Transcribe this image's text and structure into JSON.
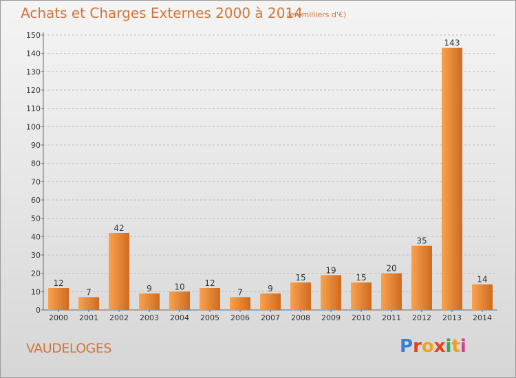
{
  "header": {
    "title": "Achats et Charges Externes 2000 à 2014",
    "subtitle": "(en milliers d'€)"
  },
  "footer": {
    "town": "VAUDELOGES",
    "logo_text": "Proxiti"
  },
  "colors": {
    "bar_light": "#f9a24e",
    "bar_dark": "#cf6a1f",
    "title": "#d0753a",
    "logo": [
      "#3a7fd1",
      "#e2401f",
      "#f0a020",
      "#e2401f",
      "#39a84a",
      "#f0a020",
      "#d23f8f"
    ]
  },
  "chart_data": {
    "type": "bar",
    "title": "Achats et Charges Externes 2000 à 2014",
    "subtitle": "(en milliers d'€)",
    "xlabel": "",
    "ylabel": "",
    "categories": [
      "2000",
      "2001",
      "2002",
      "2003",
      "2004",
      "2005",
      "2006",
      "2007",
      "2008",
      "2009",
      "2010",
      "2011",
      "2012",
      "2013",
      "2014"
    ],
    "values": [
      12,
      7,
      42,
      9,
      10,
      12,
      7,
      9,
      15,
      19,
      15,
      20,
      35,
      143,
      14
    ],
    "ylim": [
      0,
      150
    ],
    "yticks": [
      0,
      10,
      20,
      30,
      40,
      50,
      60,
      70,
      80,
      90,
      100,
      110,
      120,
      130,
      140,
      150
    ],
    "grid": "horizontal dashed",
    "legend": "none"
  }
}
